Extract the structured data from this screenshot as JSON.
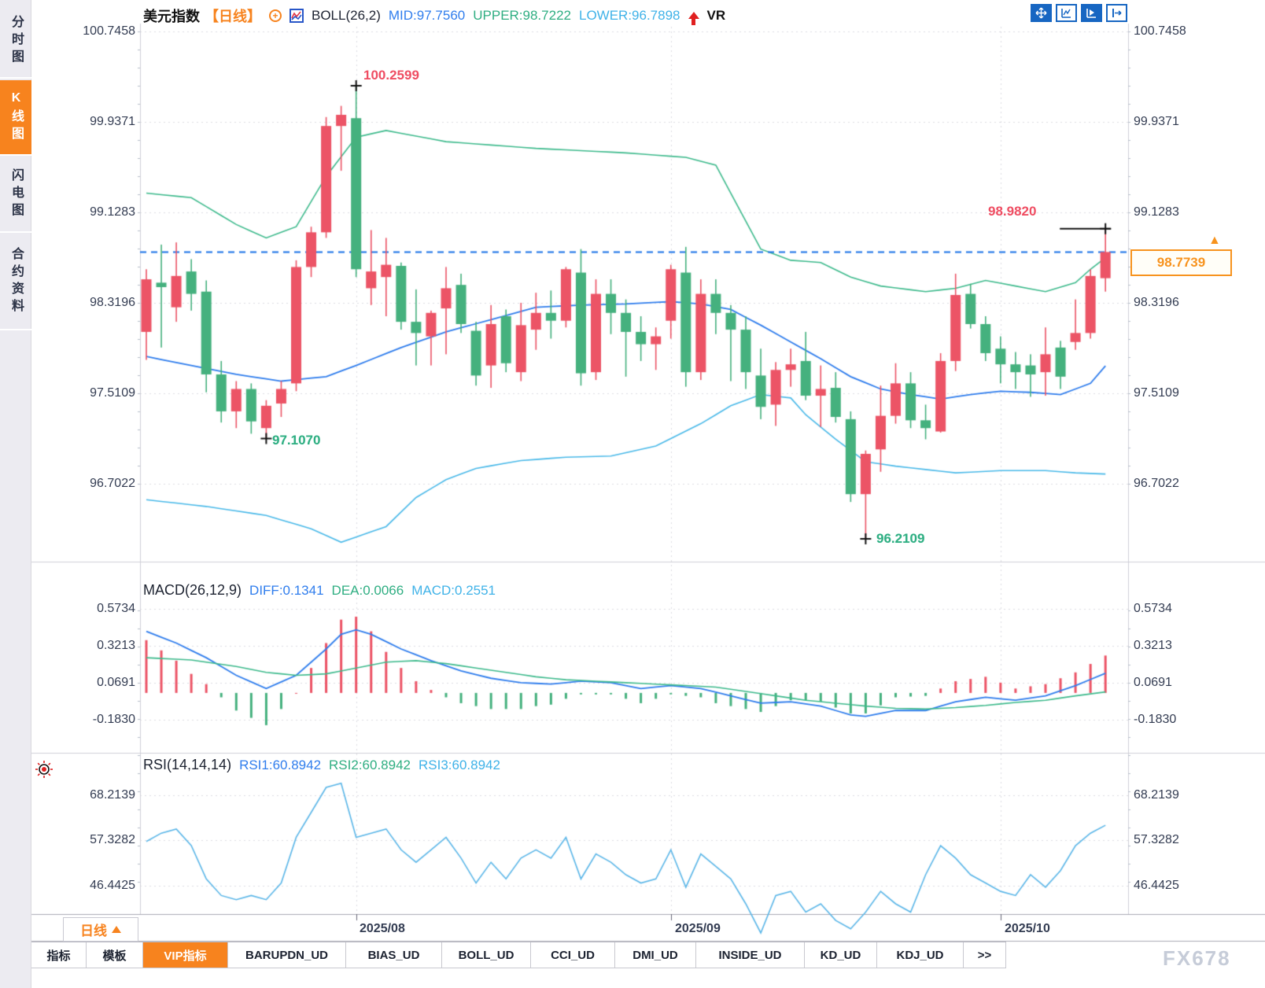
{
  "sidebar": {
    "tabs": [
      {
        "label": "分时图",
        "active": false
      },
      {
        "label": "K线图",
        "active": true
      },
      {
        "label": "闪电图",
        "active": false
      },
      {
        "label": "合约资料",
        "active": false
      }
    ]
  },
  "header": {
    "symbol": "美元指数",
    "period_tag": "【日线】",
    "indicator_name": "BOLL(26,2)",
    "mid_label": "MID:97.7560",
    "upper_label": "UPPER:98.7222",
    "lower_label": "LOWER:96.7898",
    "vr_label": "VR",
    "plus_icon": "+"
  },
  "toolbar": {
    "icons": [
      "pan-tool",
      "multi-pane",
      "pane-play",
      "collapse-right"
    ]
  },
  "axes": {
    "price": [
      "100.7458",
      "99.9371",
      "99.1283",
      "98.3196",
      "97.5109",
      "96.7022"
    ],
    "macd": [
      "0.5734",
      "0.3213",
      "0.0691",
      "-0.1830"
    ],
    "rsi": [
      "68.2139",
      "57.3282",
      "46.4425"
    ]
  },
  "annotations": {
    "high": "100.2599",
    "low1": "97.1070",
    "low2": "96.2109",
    "recent_high": "98.9820"
  },
  "price_tag": {
    "value": "98.7739",
    "arrow": "▲"
  },
  "macd_panel": {
    "title": "MACD(26,12,9)",
    "diff_label": "DIFF:0.1341",
    "dea_label": "DEA:0.0066",
    "macd_label": "MACD:0.2551"
  },
  "rsi_panel": {
    "title": "RSI(14,14,14)",
    "rsi1_label": "RSI1:60.8942",
    "rsi2_label": "RSI2:60.8942",
    "rsi3_label": "RSI3:60.8942"
  },
  "bottom": {
    "period_selector": "日线",
    "dates": [
      "2025/08",
      "2025/09",
      "2025/10"
    ],
    "tabs": [
      "指标",
      "模板",
      "VIP指标",
      "BARUPDN_UD",
      "BIAS_UD",
      "BOLL_UD",
      "CCI_UD",
      "DMI_UD",
      "INSIDE_UD",
      "KD_UD",
      "KDJ_UD",
      ">>"
    ],
    "watermark": "FX678"
  },
  "colors": {
    "up": "#ec5466",
    "down": "#45b17e",
    "boll_upper": "#3dba8c",
    "boll_mid": "#2f7ded",
    "boll_lower": "#49b9e9",
    "dashed_price": "#1a73e8",
    "rsi_line": "#5ab6e8",
    "accent_orange": "#f7831e",
    "grid": "#dcdce2"
  },
  "chart_data": {
    "type": "candlestick",
    "title": "美元指数 日线 (US Dollar Index, daily)",
    "ylim_price": [
      96.2,
      100.75
    ],
    "price_axis_values": [
      100.7458,
      99.9371,
      99.1283,
      98.3196,
      97.5109,
      96.7022
    ],
    "macd_axis_values": [
      0.5734,
      0.3213,
      0.0691,
      -0.183
    ],
    "rsi_axis_values": [
      68.2139,
      57.3282,
      46.4425
    ],
    "current_price": 98.7739,
    "x_tick_indexes": [
      14,
      35,
      57
    ],
    "x_tick_labels": [
      "2025/08",
      "2025/09",
      "2025/10"
    ],
    "candles_ohlc": [
      [
        98.06,
        98.62,
        97.81,
        98.53
      ],
      [
        98.5,
        98.84,
        97.92,
        98.46
      ],
      [
        98.28,
        98.86,
        98.15,
        98.56
      ],
      [
        98.6,
        98.71,
        98.25,
        98.4
      ],
      [
        98.42,
        98.52,
        97.52,
        97.68
      ],
      [
        97.68,
        97.8,
        97.25,
        97.35
      ],
      [
        97.35,
        97.62,
        97.2,
        97.55
      ],
      [
        97.55,
        97.6,
        97.15,
        97.26
      ],
      [
        97.2,
        97.45,
        97.107,
        97.4
      ],
      [
        97.42,
        97.62,
        97.3,
        97.55
      ],
      [
        97.6,
        98.7,
        97.53,
        98.64
      ],
      [
        98.64,
        99.0,
        98.55,
        98.95
      ],
      [
        98.95,
        99.98,
        98.9,
        99.9
      ],
      [
        99.9,
        100.08,
        99.5,
        100.0
      ],
      [
        99.97,
        100.2599,
        98.55,
        98.62
      ],
      [
        98.45,
        98.97,
        98.3,
        98.6
      ],
      [
        98.55,
        98.9,
        98.2,
        98.66
      ],
      [
        98.65,
        98.68,
        98.08,
        98.15
      ],
      [
        98.15,
        98.44,
        97.76,
        98.05
      ],
      [
        98.02,
        98.25,
        97.76,
        98.23
      ],
      [
        98.27,
        98.64,
        97.86,
        98.45
      ],
      [
        98.48,
        98.58,
        98.05,
        98.13
      ],
      [
        98.07,
        98.15,
        97.58,
        97.67
      ],
      [
        97.76,
        98.3,
        97.56,
        98.13
      ],
      [
        98.2,
        98.26,
        97.7,
        97.78
      ],
      [
        97.7,
        98.32,
        97.62,
        98.12
      ],
      [
        98.08,
        98.41,
        97.9,
        98.23
      ],
      [
        98.23,
        98.43,
        98.0,
        98.16
      ],
      [
        98.16,
        98.64,
        98.1,
        98.62
      ],
      [
        98.59,
        98.8,
        97.58,
        97.69
      ],
      [
        97.7,
        98.53,
        97.63,
        98.4
      ],
      [
        98.4,
        98.53,
        98.04,
        98.23
      ],
      [
        98.23,
        98.35,
        97.66,
        98.06
      ],
      [
        98.06,
        98.2,
        97.8,
        97.95
      ],
      [
        97.95,
        98.1,
        97.72,
        98.02
      ],
      [
        98.16,
        98.66,
        98.0,
        98.62
      ],
      [
        98.59,
        98.82,
        97.57,
        97.7
      ],
      [
        97.7,
        98.53,
        97.63,
        98.4
      ],
      [
        98.4,
        98.53,
        98.04,
        98.23
      ],
      [
        98.23,
        98.3,
        97.62,
        98.08
      ],
      [
        98.08,
        98.2,
        97.55,
        97.7
      ],
      [
        97.67,
        97.91,
        97.28,
        97.39
      ],
      [
        97.41,
        97.79,
        97.22,
        97.72
      ],
      [
        97.72,
        97.91,
        97.57,
        97.77
      ],
      [
        97.8,
        98.06,
        97.45,
        97.49
      ],
      [
        97.49,
        97.76,
        97.21,
        97.55
      ],
      [
        97.56,
        97.7,
        97.25,
        97.3
      ],
      [
        97.28,
        97.35,
        96.54,
        96.61
      ],
      [
        96.61,
        97.0,
        96.2109,
        96.97
      ],
      [
        97.01,
        97.58,
        96.81,
        97.31
      ],
      [
        97.31,
        97.78,
        97.24,
        97.6
      ],
      [
        97.6,
        97.7,
        97.2,
        97.27
      ],
      [
        97.27,
        97.41,
        97.1,
        97.2
      ],
      [
        97.17,
        97.87,
        97.16,
        97.8
      ],
      [
        97.8,
        98.58,
        97.71,
        98.39
      ],
      [
        98.4,
        98.49,
        98.09,
        98.13
      ],
      [
        98.13,
        98.2,
        97.8,
        97.87
      ],
      [
        97.91,
        98.02,
        97.6,
        97.77
      ],
      [
        97.77,
        97.88,
        97.55,
        97.7
      ],
      [
        97.76,
        97.86,
        97.48,
        97.68
      ],
      [
        97.7,
        98.1,
        97.49,
        97.86
      ],
      [
        97.92,
        97.98,
        97.55,
        97.66
      ],
      [
        97.97,
        98.35,
        97.9,
        98.05
      ],
      [
        98.05,
        98.62,
        98.0,
        98.56
      ],
      [
        98.54,
        98.982,
        98.42,
        98.7739
      ]
    ],
    "markers": [
      {
        "index": 14,
        "price": 100.2599,
        "kind": "high"
      },
      {
        "index": 8,
        "price": 97.107,
        "kind": "low"
      },
      {
        "index": 48,
        "price": 96.2109,
        "kind": "low"
      },
      {
        "index": 64,
        "price": 98.982,
        "kind": "high-line"
      }
    ],
    "boll_upper_points": [
      [
        0,
        99.3
      ],
      [
        3,
        99.26
      ],
      [
        6,
        99.02
      ],
      [
        8,
        98.9
      ],
      [
        10,
        99.0
      ],
      [
        12,
        99.45
      ],
      [
        14,
        99.8
      ],
      [
        16,
        99.86
      ],
      [
        20,
        99.76
      ],
      [
        26,
        99.7
      ],
      [
        32,
        99.66
      ],
      [
        36,
        99.62
      ],
      [
        38,
        99.55
      ],
      [
        39,
        99.3
      ],
      [
        41,
        98.8
      ],
      [
        43,
        98.7
      ],
      [
        45,
        98.68
      ],
      [
        47,
        98.55
      ],
      [
        49,
        98.47
      ],
      [
        52,
        98.42
      ],
      [
        54,
        98.45
      ],
      [
        56,
        98.52
      ],
      [
        58,
        98.47
      ],
      [
        60,
        98.42
      ],
      [
        62,
        98.5
      ],
      [
        63,
        98.62
      ],
      [
        64,
        98.7222
      ]
    ],
    "boll_mid_points": [
      [
        0,
        97.84
      ],
      [
        3,
        97.76
      ],
      [
        6,
        97.68
      ],
      [
        9,
        97.62
      ],
      [
        12,
        97.66
      ],
      [
        14,
        97.76
      ],
      [
        17,
        97.92
      ],
      [
        20,
        98.06
      ],
      [
        23,
        98.17
      ],
      [
        26,
        98.28
      ],
      [
        29,
        98.3
      ],
      [
        32,
        98.31
      ],
      [
        35,
        98.33
      ],
      [
        37,
        98.31
      ],
      [
        39,
        98.26
      ],
      [
        41,
        98.12
      ],
      [
        43,
        97.97
      ],
      [
        45,
        97.82
      ],
      [
        47,
        97.66
      ],
      [
        49,
        97.55
      ],
      [
        51,
        97.5
      ],
      [
        53,
        97.46
      ],
      [
        55,
        97.5
      ],
      [
        57,
        97.53
      ],
      [
        59,
        97.52
      ],
      [
        61,
        97.5
      ],
      [
        63,
        97.6
      ],
      [
        64,
        97.756
      ]
    ],
    "boll_lower_points": [
      [
        0,
        96.56
      ],
      [
        4,
        96.5
      ],
      [
        8,
        96.42
      ],
      [
        11,
        96.3
      ],
      [
        13,
        96.18
      ],
      [
        16,
        96.32
      ],
      [
        18,
        96.58
      ],
      [
        20,
        96.74
      ],
      [
        22,
        96.84
      ],
      [
        25,
        96.91
      ],
      [
        28,
        96.94
      ],
      [
        31,
        96.95
      ],
      [
        34,
        97.04
      ],
      [
        37,
        97.24
      ],
      [
        39,
        97.4
      ],
      [
        41,
        97.5
      ],
      [
        43,
        97.47
      ],
      [
        44,
        97.32
      ],
      [
        46,
        97.1
      ],
      [
        48,
        96.9
      ],
      [
        50,
        96.86
      ],
      [
        52,
        96.83
      ],
      [
        54,
        96.8
      ],
      [
        57,
        96.82
      ],
      [
        60,
        96.82
      ],
      [
        62,
        96.8
      ],
      [
        64,
        96.7898
      ]
    ],
    "macd_diff_points": [
      [
        0,
        0.42
      ],
      [
        2,
        0.34
      ],
      [
        4,
        0.24
      ],
      [
        6,
        0.12
      ],
      [
        8,
        0.03
      ],
      [
        10,
        0.12
      ],
      [
        12,
        0.3
      ],
      [
        13,
        0.4
      ],
      [
        14,
        0.43
      ],
      [
        15,
        0.4
      ],
      [
        17,
        0.3
      ],
      [
        19,
        0.22
      ],
      [
        21,
        0.15
      ],
      [
        23,
        0.1
      ],
      [
        25,
        0.07
      ],
      [
        27,
        0.06
      ],
      [
        29,
        0.08
      ],
      [
        31,
        0.07
      ],
      [
        33,
        0.03
      ],
      [
        35,
        0.05
      ],
      [
        37,
        0.03
      ],
      [
        39,
        -0.02
      ],
      [
        41,
        -0.07
      ],
      [
        43,
        -0.06
      ],
      [
        45,
        -0.09
      ],
      [
        47,
        -0.15
      ],
      [
        48,
        -0.16
      ],
      [
        50,
        -0.12
      ],
      [
        52,
        -0.12
      ],
      [
        54,
        -0.06
      ],
      [
        56,
        -0.03
      ],
      [
        58,
        -0.05
      ],
      [
        60,
        -0.02
      ],
      [
        62,
        0.05
      ],
      [
        64,
        0.1341
      ]
    ],
    "macd_dea_points": [
      [
        0,
        0.24
      ],
      [
        3,
        0.225
      ],
      [
        6,
        0.18
      ],
      [
        8,
        0.14
      ],
      [
        10,
        0.12
      ],
      [
        12,
        0.13
      ],
      [
        14,
        0.17
      ],
      [
        16,
        0.21
      ],
      [
        18,
        0.22
      ],
      [
        20,
        0.2
      ],
      [
        22,
        0.17
      ],
      [
        24,
        0.14
      ],
      [
        26,
        0.11
      ],
      [
        28,
        0.09
      ],
      [
        30,
        0.08
      ],
      [
        32,
        0.07
      ],
      [
        34,
        0.06
      ],
      [
        36,
        0.05
      ],
      [
        38,
        0.04
      ],
      [
        40,
        0.01
      ],
      [
        42,
        -0.02
      ],
      [
        44,
        -0.05
      ],
      [
        46,
        -0.07
      ],
      [
        48,
        -0.09
      ],
      [
        50,
        -0.105
      ],
      [
        52,
        -0.11
      ],
      [
        54,
        -0.1
      ],
      [
        56,
        -0.085
      ],
      [
        58,
        -0.065
      ],
      [
        60,
        -0.05
      ],
      [
        62,
        -0.02
      ],
      [
        64,
        0.0066
      ]
    ],
    "macd_hist_rule": "hist = 2 * (DIFF - DEA)",
    "rsi_values": [
      57,
      59,
      60,
      56,
      48,
      44,
      43,
      44,
      43,
      47,
      58,
      64,
      70,
      71,
      58,
      59,
      60,
      55,
      52,
      55,
      58,
      53,
      47,
      52,
      48,
      53,
      55,
      53,
      58,
      48,
      54,
      52,
      49,
      47,
      48,
      55,
      46,
      54,
      51,
      48,
      42,
      35,
      44,
      45,
      40,
      42,
      38,
      36,
      40,
      45,
      42,
      40,
      49,
      56,
      53,
      49,
      47,
      45,
      44,
      49,
      46,
      50,
      56,
      59,
      60.8942
    ]
  }
}
